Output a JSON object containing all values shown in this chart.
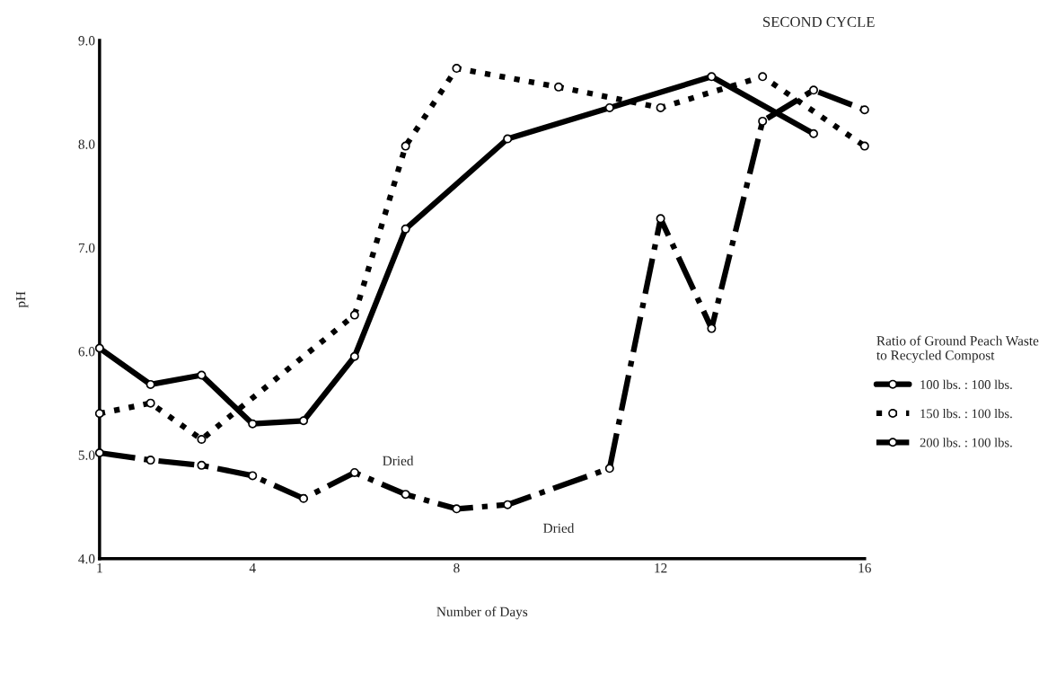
{
  "chart_data": {
    "type": "line",
    "title": "SECOND CYCLE",
    "xlabel": "Number of Days",
    "ylabel": "pH",
    "legend_title": "Ratio of Ground Peach Waste\nto Recycled Compost",
    "legend": "right",
    "marker": "circle",
    "xlim": [
      1,
      16
    ],
    "xticks": [
      1,
      4,
      8,
      12,
      16
    ],
    "ylim": [
      4,
      9
    ],
    "yticks": [
      {
        "value": 4,
        "label": "4.0"
      },
      {
        "value": 5,
        "label": "5.0"
      },
      {
        "value": 6,
        "label": "6.0"
      },
      {
        "value": 7,
        "label": "7.0"
      },
      {
        "value": 8,
        "label": "8.0"
      },
      {
        "value": 9,
        "label": "9.0"
      }
    ],
    "series": [
      {
        "name": "100 lbs. : 100 lbs.",
        "color": "#000000",
        "line_style": "solid",
        "x": [
          1,
          2,
          3,
          4,
          5,
          6,
          7,
          9,
          11,
          13,
          15
        ],
        "values": [
          6.03,
          5.68,
          5.77,
          5.3,
          5.33,
          5.95,
          7.18,
          8.05,
          8.35,
          8.65,
          8.1
        ]
      },
      {
        "name": "150 lbs. : 100 lbs.",
        "color": "#000000",
        "line_style": "dotted",
        "x": [
          1,
          2,
          3,
          6,
          7,
          8,
          10,
          12,
          14,
          16
        ],
        "values": [
          5.4,
          5.5,
          5.15,
          6.35,
          7.98,
          8.73,
          8.55,
          8.35,
          8.65,
          7.98
        ]
      },
      {
        "name": "200 lbs. : 100 lbs.",
        "color": "#000000",
        "line_style": "dashdot",
        "x": [
          1,
          2,
          3,
          4,
          5,
          6,
          7,
          8,
          9,
          11,
          12,
          13,
          14,
          15,
          16
        ],
        "values": [
          5.02,
          4.95,
          4.9,
          4.8,
          4.58,
          4.83,
          4.62,
          4.48,
          4.52,
          4.87,
          7.28,
          6.22,
          8.22,
          8.52,
          8.33
        ]
      }
    ],
    "annotations": [
      "Dried",
      "Dried"
    ]
  }
}
